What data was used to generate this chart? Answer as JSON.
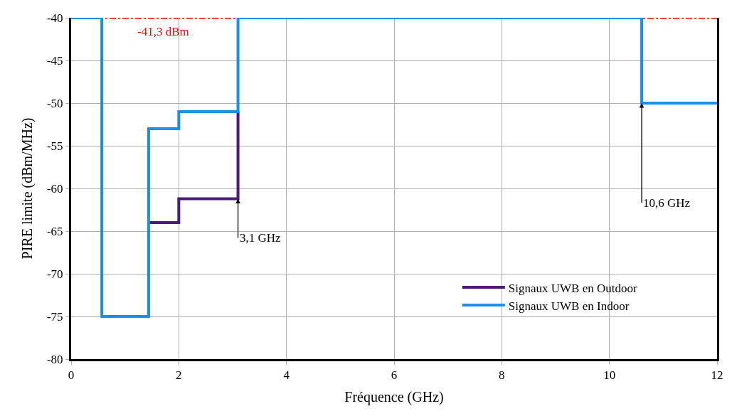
{
  "chart_data": {
    "type": "step",
    "xlabel": "Fréquence (GHz)",
    "ylabel": "PIRE limite (dBm/MHz)",
    "series": [
      {
        "name": "Signaux UWB en Outdoor",
        "color": "#4b1a7a",
        "x": [
          1.44,
          2.0,
          3.1
        ],
        "values": [
          -64,
          -61.2,
          -51
        ]
      },
      {
        "name": "Signaux UWB en Indoor",
        "color": "#1a8fe6",
        "x": [
          0,
          0.57,
          1.44,
          2.0,
          3.1,
          10.6,
          12
        ],
        "values": [
          -40,
          -75,
          -53,
          -51,
          -40,
          -50,
          -50
        ]
      }
    ],
    "ref_lines": [
      {
        "axis": "y",
        "value": -40,
        "label": "-41,3 dBm",
        "color": "#ff0000",
        "line_style": "dashdot"
      }
    ],
    "annotations": [
      {
        "text": "3,1 GHz",
        "x": 3.1,
        "y": -61.2
      },
      {
        "text": "10,6 GHz",
        "x": 10.6,
        "y": -50
      }
    ],
    "xlim": [
      0,
      12
    ],
    "xticks": [
      0,
      2,
      4,
      6,
      8,
      10,
      12
    ],
    "ylim": [
      -80,
      -40
    ],
    "yticks": [
      -80,
      -75,
      -70,
      -65,
      -60,
      -55,
      -50,
      -45,
      -40
    ],
    "grid": true,
    "legend": "bottom right",
    "marker": "none",
    "line_style": "solid"
  }
}
